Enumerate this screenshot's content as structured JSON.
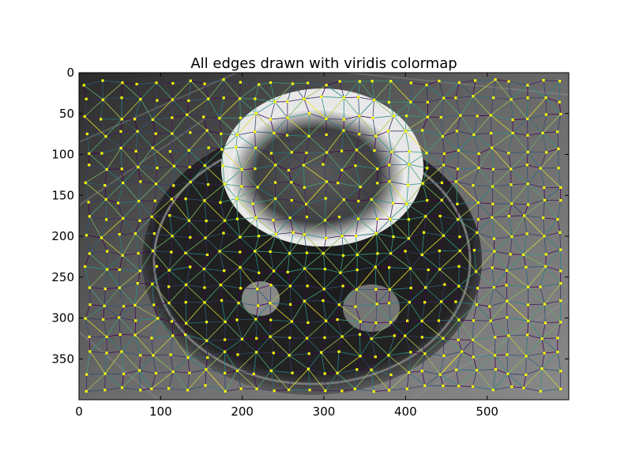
{
  "chart_data": {
    "type": "image",
    "title": "All edges drawn with viridis colormap",
    "xlabel": "",
    "ylabel": "",
    "xlim": [
      0,
      600
    ],
    "ylim": [
      400,
      0
    ],
    "y_inverted": true,
    "xticks": [
      0,
      100,
      200,
      300,
      400,
      500
    ],
    "yticks": [
      0,
      50,
      100,
      150,
      200,
      250,
      300,
      350
    ],
    "grid": false,
    "colormap": "viridis",
    "node_color": "#ffff00",
    "edge_color_low": "#440154",
    "edge_color_mid": "#21918c",
    "edge_color_high": "#fde725",
    "background_image": "grayscale photo of espresso cup on saucer with spoon"
  }
}
